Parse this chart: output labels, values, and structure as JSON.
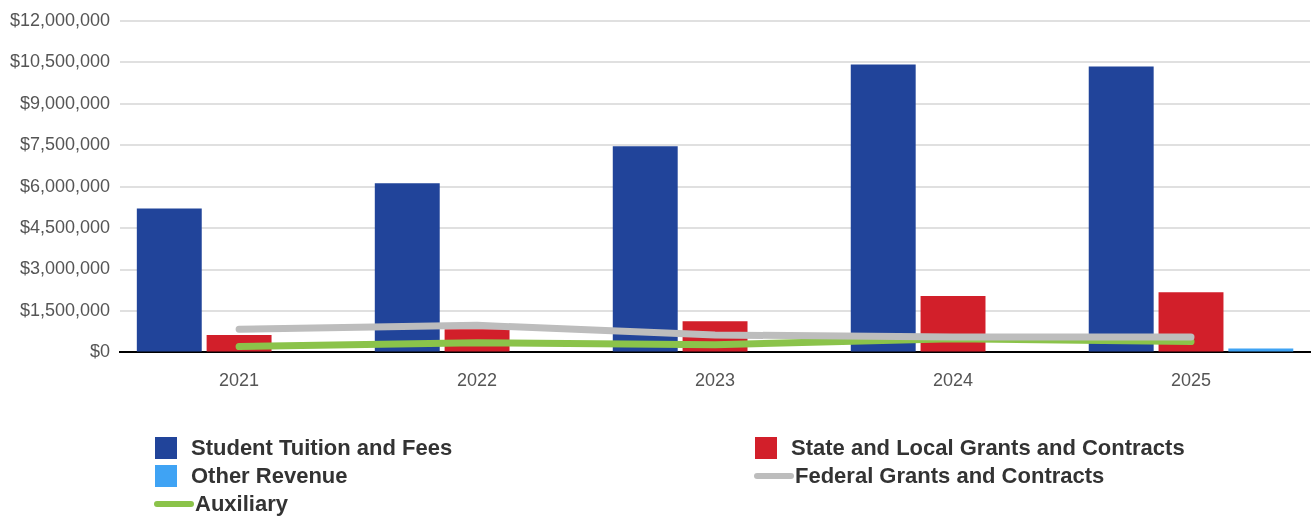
{
  "chart_data": {
    "type": "bar",
    "categories": [
      "2021",
      "2022",
      "2023",
      "2024",
      "2025"
    ],
    "series": [
      {
        "name": "Student Tuition and Fees",
        "color": "#21449a",
        "values": [
          5210000,
          6120000,
          7460000,
          10420000,
          10350000
        ]
      },
      {
        "name": "State and Local Grants and Contracts",
        "color": "#d21f2a",
        "values": [
          630000,
          840000,
          1130000,
          2040000,
          2180000
        ]
      },
      {
        "name": "Other Revenue",
        "color": "#3fa3f4",
        "values": [
          0,
          null,
          null,
          0,
          140000
        ]
      },
      {
        "name": "Federal Grants and Contracts",
        "type": "line",
        "color": "#bdbdbd",
        "values": [
          840000,
          980000,
          630000,
          560000,
          560000
        ]
      },
      {
        "name": "Auxiliary",
        "type": "line",
        "color": "#8bc34a",
        "values": [
          210000,
          350000,
          280000,
          490000,
          390000
        ]
      }
    ],
    "ylim": [
      0,
      12000000
    ],
    "yticks": [
      {
        "value": 0,
        "label": "$0"
      },
      {
        "value": 1500000,
        "label": "$1,500,000"
      },
      {
        "value": 3000000,
        "label": "$3,000,000"
      },
      {
        "value": 4500000,
        "label": "$4,500,000"
      },
      {
        "value": 6000000,
        "label": "$6,000,000"
      },
      {
        "value": 7500000,
        "label": "$7,500,000"
      },
      {
        "value": 9000000,
        "label": "$9,000,000"
      },
      {
        "value": 10500000,
        "label": "$10,500,000"
      },
      {
        "value": 12000000,
        "label": "$12,000,000"
      }
    ],
    "grid": "y",
    "legend": "bottom"
  }
}
